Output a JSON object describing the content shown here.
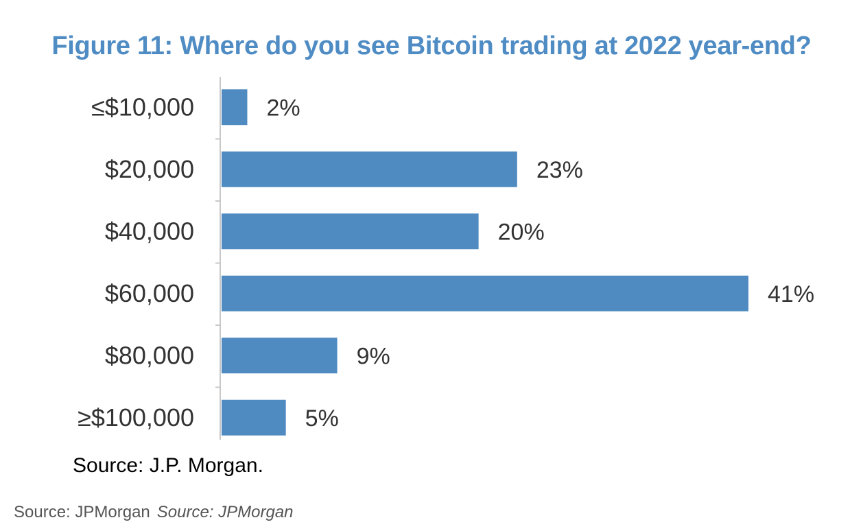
{
  "chart_data": {
    "type": "bar",
    "orientation": "horizontal",
    "title": "Figure 11: Where do you see Bitcoin trading at 2022 year-end?",
    "categories": [
      "≤$10,000",
      "$20,000",
      "$40,000",
      "$60,000",
      "$80,000",
      "≥$100,000"
    ],
    "values": [
      2,
      23,
      20,
      41,
      9,
      5
    ],
    "value_labels": [
      "2%",
      "23%",
      "20%",
      "41%",
      "9%",
      "5%"
    ],
    "unit": "%",
    "xlim": [
      0,
      41
    ],
    "grid": false,
    "bar_color": "#4f8bc0",
    "title_color": "#4f8cc4"
  },
  "source_note": "Source: J.P. Morgan.",
  "caption": {
    "source": "Source: JPMorgan",
    "credit": "Source: JPMorgan"
  }
}
